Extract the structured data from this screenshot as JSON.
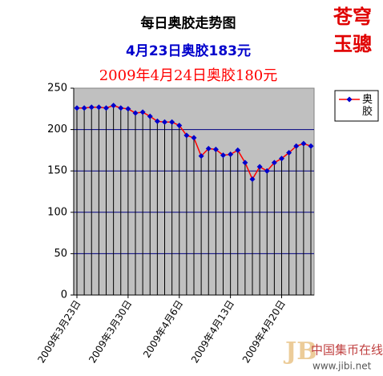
{
  "chart_data": {
    "type": "line",
    "title": "每日奥胶走势图",
    "subtitles": [
      "4月23日奥胶183元",
      "2009年4月24日奥胶180元"
    ],
    "categories": [
      "2009年3月23日",
      null,
      null,
      null,
      null,
      null,
      null,
      "2009年3月30日",
      null,
      null,
      null,
      null,
      null,
      null,
      "2009年4月6日",
      null,
      null,
      null,
      null,
      null,
      null,
      "2009年4月13日",
      null,
      null,
      null,
      null,
      null,
      null,
      "2009年4月20日",
      null,
      null,
      null,
      null
    ],
    "series": [
      {
        "name": "奥胶",
        "color": "#ff0000",
        "marker_color": "#0000cc",
        "values": [
          226,
          226,
          227,
          227,
          226,
          229,
          226,
          225,
          220,
          221,
          216,
          210,
          209,
          209,
          205,
          193,
          190,
          168,
          177,
          176,
          169,
          170,
          175,
          160,
          140,
          155,
          150,
          160,
          165,
          172,
          180,
          183,
          180
        ]
      }
    ],
    "ylim": [
      0,
      250
    ],
    "yticks": [
      0,
      50,
      100,
      150,
      200,
      250
    ],
    "grid": true,
    "drop_lines": true,
    "legend": "right"
  },
  "logo": [
    "苍穹",
    "玉骢"
  ],
  "watermark": {
    "name": "中国集币在线",
    "url": "www.jibi.net"
  }
}
